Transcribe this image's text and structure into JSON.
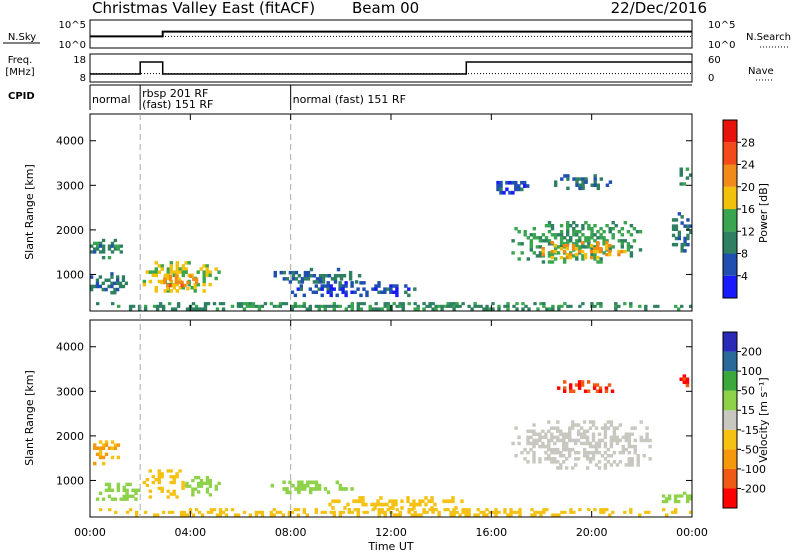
{
  "header": {
    "station": "Christmas Valley East (fitACF)",
    "beam": "Beam 00",
    "date": "22/Dec/2016"
  },
  "noise_panel": {
    "left_label": "N.Sky",
    "right_label": "N.Search",
    "ticks_left": [
      "10^5",
      "10^0"
    ],
    "ticks_right": [
      "10^5",
      "10^0"
    ]
  },
  "freq_panel": {
    "left_label_1": "Freq.",
    "left_label_2": "[MHz]",
    "right_label": "Nave",
    "ticks_left": [
      "18",
      "8"
    ],
    "ticks_right": [
      "60",
      "0"
    ]
  },
  "cpid": {
    "label": "CPID",
    "segments": [
      {
        "start": 0.0,
        "text": "normal"
      },
      {
        "start": 2.0,
        "text": "rbsp 201 RF"
      },
      {
        "start": 2.0,
        "text": "(fast) 151 RF"
      },
      {
        "start": 8.0,
        "text": "normal (fast) 151 RF"
      }
    ]
  },
  "x_axis": {
    "label": "Time UT",
    "ticks": [
      "00:00",
      "04:00",
      "08:00",
      "12:00",
      "16:00",
      "20:00",
      "00:00"
    ]
  },
  "power_scale": {
    "title": "Power [dB]",
    "ticks": [
      "4",
      "8",
      "12",
      "16",
      "20",
      "24",
      "28"
    ]
  },
  "velocity_scale": {
    "title": "Velocity [m s⁻¹]",
    "ticks": [
      "-200",
      "-100",
      "-50",
      "-15",
      "15",
      "50",
      "100",
      "200"
    ]
  },
  "colors": {
    "power": [
      "#1a1aff",
      "#1f4fb0",
      "#2f7f62",
      "#39a64f",
      "#f2c20a",
      "#f08a18",
      "#f24a18",
      "#e8120c"
    ],
    "velocity": [
      "#ff0000",
      "#f05a14",
      "#f5980c",
      "#f5c214",
      "#c8c8c0",
      "#8ed24a",
      "#3aa83a",
      "#2a6a9a",
      "#2a2ab8"
    ]
  },
  "chart_data": [
    {
      "type": "line",
      "title": "N.Sky / N.Search",
      "x_units": "hours UT",
      "series": [
        {
          "name": "N.Sky",
          "x": [
            0,
            2.9,
            2.9,
            24
          ],
          "y": [
            2,
            2,
            3,
            3
          ]
        },
        {
          "name": "N.Search",
          "x": [
            0,
            24
          ],
          "y": [
            2,
            2
          ]
        }
      ]
    },
    {
      "type": "line",
      "title": "Freq. / Nave",
      "x_units": "hours UT",
      "series": [
        {
          "name": "Freq.",
          "x": [
            0,
            2.0,
            2.0,
            2.9,
            2.9,
            15.0,
            15.0,
            24
          ],
          "y": [
            10.5,
            10.5,
            15.5,
            15.5,
            10.5,
            10.5,
            15.5,
            15.5
          ]
        },
        {
          "name": "Nave",
          "x": [
            0,
            24
          ],
          "y": [
            16,
            16
          ]
        }
      ]
    },
    {
      "type": "heatmap",
      "title": "Power",
      "xlabel": "Time UT",
      "ylabel": "Slant Range [km]",
      "xlim": [
        0,
        24
      ],
      "ylim": [
        180,
        4600
      ],
      "yticks": [
        1000,
        2000,
        3000,
        4000
      ],
      "colorbar": {
        "label": "Power [dB]",
        "ticks": [
          4,
          8,
          12,
          16,
          20,
          24,
          28
        ]
      },
      "patches": [
        {
          "t0": 0.0,
          "t1": 1.3,
          "r0": 1350,
          "r1": 1800,
          "value": 10
        },
        {
          "t0": 0.0,
          "t1": 1.5,
          "r0": 560,
          "r1": 1050,
          "value": 9
        },
        {
          "t0": 2.1,
          "t1": 5.2,
          "r0": 600,
          "r1": 1300,
          "value": 17
        },
        {
          "t0": 2.8,
          "t1": 4.3,
          "r0": 650,
          "r1": 1000,
          "value": 22
        },
        {
          "t0": 7.2,
          "t1": 10.8,
          "r0": 800,
          "r1": 1150,
          "value": 8
        },
        {
          "t0": 8.0,
          "t1": 13.0,
          "r0": 500,
          "r1": 850,
          "value": 6
        },
        {
          "t0": 0.0,
          "t1": 24.0,
          "r0": 200,
          "r1": 380,
          "value": 11
        },
        {
          "t0": 16.8,
          "t1": 22.0,
          "r0": 1250,
          "r1": 2200,
          "value": 13
        },
        {
          "t0": 18.0,
          "t1": 21.5,
          "r0": 1350,
          "r1": 1750,
          "value": 20
        },
        {
          "t0": 16.2,
          "t1": 17.5,
          "r0": 2800,
          "r1": 3100,
          "value": 6
        },
        {
          "t0": 18.5,
          "t1": 20.8,
          "r0": 2900,
          "r1": 3250,
          "value": 8
        },
        {
          "t0": 23.2,
          "t1": 24.0,
          "r0": 1500,
          "r1": 2400,
          "value": 9
        },
        {
          "t0": 23.5,
          "t1": 24.0,
          "r0": 3000,
          "r1": 3400,
          "value": 10
        }
      ]
    },
    {
      "type": "heatmap",
      "title": "Velocity",
      "xlabel": "Time UT",
      "ylabel": "Slant Range [km]",
      "xlim": [
        0,
        24
      ],
      "ylim": [
        180,
        4600
      ],
      "yticks": [
        1000,
        2000,
        3000,
        4000
      ],
      "colorbar": {
        "label": "Velocity [m s⁻¹]",
        "ticks": [
          -200,
          -100,
          -50,
          -15,
          15,
          50,
          100,
          200
        ]
      },
      "patches": [
        {
          "t0": 0.0,
          "t1": 1.3,
          "r0": 1350,
          "r1": 1900,
          "value": -50
        },
        {
          "t0": 0.0,
          "t1": 2.0,
          "r0": 550,
          "r1": 950,
          "value": 40
        },
        {
          "t0": 2.1,
          "t1": 4.0,
          "r0": 600,
          "r1": 1250,
          "value": -40
        },
        {
          "t0": 3.8,
          "t1": 5.2,
          "r0": 650,
          "r1": 1100,
          "value": 35
        },
        {
          "t0": 7.2,
          "t1": 10.5,
          "r0": 700,
          "r1": 1000,
          "value": 30
        },
        {
          "t0": 9.5,
          "t1": 15.0,
          "r0": 350,
          "r1": 650,
          "value": -30
        },
        {
          "t0": 0.0,
          "t1": 24.0,
          "r0": 200,
          "r1": 380,
          "value": -40
        },
        {
          "t0": 16.8,
          "t1": 22.5,
          "r0": 1250,
          "r1": 2350,
          "value": 0
        },
        {
          "t0": 18.5,
          "t1": 21.0,
          "r0": 2900,
          "r1": 3250,
          "value": -200
        },
        {
          "t0": 23.5,
          "t1": 24.0,
          "r0": 3100,
          "r1": 3450,
          "value": -200
        },
        {
          "t0": 22.8,
          "t1": 24.0,
          "r0": 500,
          "r1": 750,
          "value": 40
        }
      ]
    }
  ]
}
